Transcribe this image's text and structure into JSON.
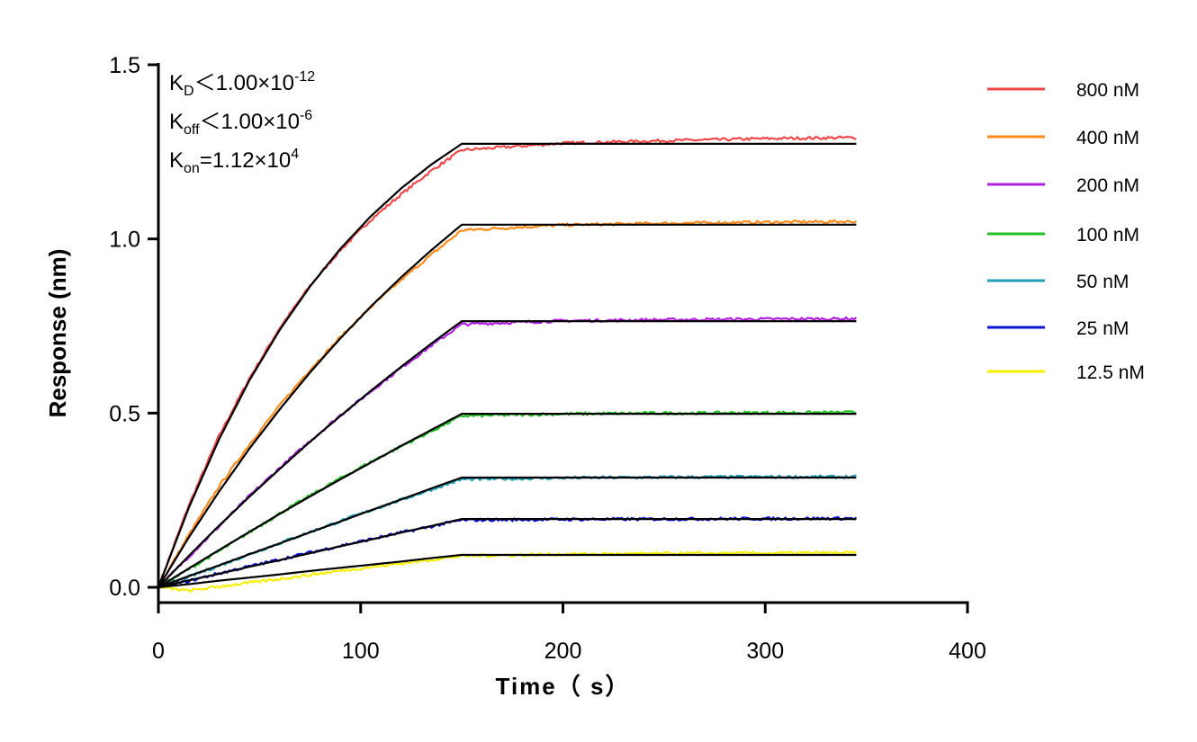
{
  "chart_data": {
    "type": "line",
    "xlabel": "Time（ s）",
    "ylabel": "Response (nm)",
    "xlim": [
      0,
      400
    ],
    "ylim": [
      0,
      1.5
    ],
    "xticks": [
      "0",
      "100",
      "200",
      "300",
      "400"
    ],
    "yticks": [
      "0.0",
      "0.5",
      "1.0",
      "1.5"
    ],
    "grid": false,
    "legend_position": "right",
    "annotations": [
      {
        "main": "K",
        "sub": "D",
        "rest": "＜1.00×10",
        "sup": "-12"
      },
      {
        "main": "K",
        "sub": "off",
        "rest": "＜1.00×10",
        "sup": "-6"
      },
      {
        "main": "K",
        "sub": "on",
        "rest": "=1.12×10",
        "sup": "4"
      }
    ],
    "fit_color": "#000000",
    "x": [
      0,
      15,
      30,
      45,
      60,
      75,
      90,
      105,
      120,
      135,
      150,
      200,
      250,
      300,
      345
    ],
    "series": [
      {
        "name": "800 nM",
        "color": "#f04848",
        "fit": [
          0,
          0.228,
          0.425,
          0.594,
          0.739,
          0.864,
          0.972,
          1.065,
          1.145,
          1.214,
          1.273,
          1.273,
          1.273,
          1.273,
          1.273
        ],
        "measured": [
          0,
          0.235,
          0.435,
          0.6,
          0.745,
          0.866,
          0.968,
          1.055,
          1.128,
          1.196,
          1.255,
          1.275,
          1.282,
          1.288,
          1.291
        ]
      },
      {
        "name": "400 nM",
        "color": "#ff8a1a",
        "fit": [
          0,
          0.143,
          0.275,
          0.398,
          0.511,
          0.617,
          0.715,
          0.806,
          0.89,
          0.968,
          1.041,
          1.041,
          1.041,
          1.041,
          1.041
        ],
        "measured": [
          0,
          0.15,
          0.29,
          0.41,
          0.522,
          0.625,
          0.718,
          0.804,
          0.882,
          0.955,
          1.025,
          1.04,
          1.045,
          1.048,
          1.05
        ]
      },
      {
        "name": "200 nM",
        "color": "#b020e0",
        "fit": [
          0,
          0.09,
          0.177,
          0.26,
          0.34,
          0.418,
          0.492,
          0.564,
          0.633,
          0.7,
          0.764,
          0.764,
          0.764,
          0.764,
          0.764
        ],
        "measured": [
          0,
          0.088,
          0.175,
          0.262,
          0.343,
          0.42,
          0.494,
          0.562,
          0.63,
          0.694,
          0.755,
          0.765,
          0.768,
          0.77,
          0.771
        ]
      },
      {
        "name": "100 nM",
        "color": "#22c022",
        "fit": [
          0,
          0.054,
          0.107,
          0.159,
          0.211,
          0.261,
          0.31,
          0.358,
          0.406,
          0.452,
          0.498,
          0.498,
          0.498,
          0.498,
          0.498
        ],
        "measured": [
          0,
          0.052,
          0.104,
          0.158,
          0.212,
          0.263,
          0.313,
          0.36,
          0.405,
          0.448,
          0.492,
          0.498,
          0.5,
          0.501,
          0.502
        ]
      },
      {
        "name": "50 nM",
        "color": "#20a0b8",
        "fit": [
          0,
          0.032,
          0.063,
          0.095,
          0.126,
          0.158,
          0.189,
          0.221,
          0.252,
          0.284,
          0.315,
          0.315,
          0.315,
          0.315,
          0.315
        ],
        "measured": [
          0,
          0.03,
          0.062,
          0.095,
          0.127,
          0.159,
          0.19,
          0.221,
          0.251,
          0.281,
          0.31,
          0.314,
          0.316,
          0.317,
          0.317
        ]
      },
      {
        "name": "25 nM",
        "color": "#0a14d0",
        "fit": [
          0,
          0.02,
          0.039,
          0.059,
          0.078,
          0.098,
          0.118,
          0.137,
          0.157,
          0.176,
          0.196,
          0.196,
          0.196,
          0.196,
          0.196
        ],
        "measured": [
          0,
          0.018,
          0.04,
          0.06,
          0.08,
          0.1,
          0.119,
          0.138,
          0.157,
          0.175,
          0.193,
          0.195,
          0.196,
          0.197,
          0.198
        ]
      },
      {
        "name": "12.5 nM",
        "color": "#f8f000",
        "fit": [
          0,
          0.009,
          0.019,
          0.028,
          0.037,
          0.047,
          0.056,
          0.065,
          0.074,
          0.084,
          0.093,
          0.093,
          0.093,
          0.093,
          0.093
        ],
        "measured": [
          0,
          -0.01,
          0.002,
          0.013,
          0.024,
          0.036,
          0.047,
          0.058,
          0.068,
          0.079,
          0.09,
          0.095,
          0.097,
          0.098,
          0.099
        ]
      }
    ]
  }
}
